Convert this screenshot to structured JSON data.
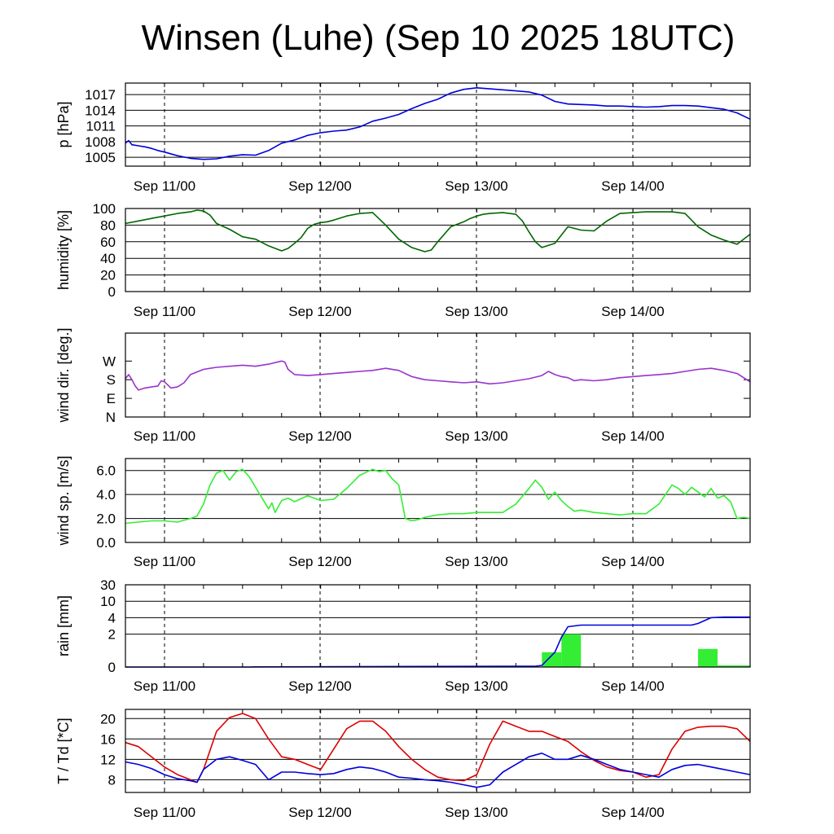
{
  "title": "Winsen (Luhe) (Sep 10 2025 18UTC)",
  "day_labels": [
    "Sep 11/00",
    "Sep 12/00",
    "Sep 13/00",
    "Sep 14/00"
  ],
  "colors": {
    "pressure": "#0000dd",
    "humidity": "#006600",
    "wind_dir": "#9933cc",
    "wind_speed": "#33ee33",
    "rain_bar": "#33ee33",
    "rain_cum": "#0000dd",
    "temperature": "#dd0000",
    "dewpoint": "#0000dd",
    "grid": "#000000"
  },
  "chart_data": [
    {
      "type": "line",
      "ylabel": "p [hPa]",
      "x_unit": "hours since Sep 10 18UTC",
      "xlim": [
        0,
        96
      ],
      "ylim": [
        1003.3,
        1019.2
      ],
      "yticks": [
        1005,
        1008,
        1011,
        1014,
        1017
      ],
      "ytick_labels": [
        "1005",
        "1008",
        "1011",
        "1014",
        "1017"
      ],
      "grid": true,
      "series": [
        {
          "color_key": "pressure",
          "x": [
            0,
            0.5,
            1,
            2,
            3,
            4,
            5,
            6,
            8,
            10,
            12,
            14,
            16,
            18,
            20,
            22,
            24,
            26,
            28,
            30,
            32,
            34,
            36,
            38,
            40,
            42,
            44,
            46,
            48,
            50,
            52,
            54,
            56,
            58,
            60,
            62,
            64,
            66,
            68,
            70,
            72,
            74,
            76,
            78,
            80,
            82,
            84,
            86,
            88,
            90,
            92,
            94,
            96
          ],
          "y": [
            1007.7,
            1008.2,
            1007.4,
            1007.2,
            1007.0,
            1006.7,
            1006.3,
            1006.0,
            1005.3,
            1004.8,
            1004.6,
            1004.7,
            1005.2,
            1005.5,
            1005.4,
            1006.3,
            1007.7,
            1008.3,
            1009.2,
            1009.7,
            1010.0,
            1010.2,
            1010.8,
            1011.9,
            1012.5,
            1013.2,
            1014.3,
            1015.3,
            1016.1,
            1017.3,
            1018.0,
            1018.3,
            1018.1,
            1017.9,
            1017.7,
            1017.5,
            1016.9,
            1015.7,
            1015.2,
            1015.1,
            1015.0,
            1014.8,
            1014.8,
            1014.7,
            1014.6,
            1014.7,
            1014.9,
            1014.9,
            1014.8,
            1014.5,
            1014.2,
            1013.5,
            1012.3
          ]
        }
      ]
    },
    {
      "type": "line",
      "ylabel": "humidity [%]",
      "x_unit": "hours since Sep 10 18UTC",
      "xlim": [
        0,
        96
      ],
      "ylim": [
        0,
        100
      ],
      "yticks": [
        0,
        20,
        40,
        60,
        80,
        100
      ],
      "ytick_labels": [
        "0",
        "20",
        "40",
        "60",
        "80",
        "100"
      ],
      "grid": true,
      "series": [
        {
          "color_key": "humidity",
          "x": [
            0,
            2,
            4,
            6,
            8,
            10,
            11,
            12,
            13,
            14,
            16,
            18,
            20,
            22,
            24,
            25,
            26,
            27,
            28,
            29,
            30,
            31,
            32,
            34,
            36,
            38,
            40,
            42,
            44,
            46,
            47,
            48,
            50,
            52,
            53,
            54,
            55,
            56,
            58,
            60,
            61,
            62,
            63,
            64,
            66,
            67,
            68,
            70,
            72,
            74,
            76,
            78,
            80,
            82,
            84,
            86,
            88,
            90,
            92,
            94,
            96
          ],
          "y": [
            82,
            85,
            88,
            91,
            94,
            96,
            98,
            97,
            92,
            82,
            75,
            66,
            63,
            55,
            49,
            52,
            58,
            65,
            76,
            81,
            83,
            84,
            86,
            91,
            94,
            95,
            80,
            63,
            53,
            48,
            50,
            60,
            78,
            84,
            88,
            91,
            93,
            94,
            95,
            93,
            85,
            72,
            60,
            53,
            58,
            68,
            78,
            74,
            73,
            85,
            94,
            95,
            96,
            96,
            96,
            94,
            78,
            68,
            62,
            57,
            69
          ]
        }
      ]
    },
    {
      "type": "line",
      "ylabel": "wind dir. [deg.]",
      "x_unit": "hours since Sep 10 18UTC",
      "xlim": [
        0,
        96
      ],
      "ylim": [
        0,
        405
      ],
      "yticks": [
        0,
        90,
        180,
        270
      ],
      "ytick_labels": [
        "N",
        "E",
        "S",
        "W"
      ],
      "grid": false,
      "series": [
        {
          "color_key": "wind_dir",
          "x": [
            0,
            0.5,
            1,
            1.5,
            2,
            3,
            4,
            5,
            5.5,
            6,
            7,
            8,
            9,
            10,
            12,
            14,
            16,
            18,
            20,
            22,
            24,
            24.5,
            25,
            26,
            28,
            30,
            32,
            34,
            36,
            38,
            40,
            42,
            44,
            46,
            48,
            50,
            52,
            54,
            56,
            58,
            60,
            62,
            64,
            65,
            66,
            67,
            68,
            69,
            70,
            72,
            74,
            76,
            78,
            80,
            82,
            84,
            86,
            88,
            90,
            92,
            94,
            95,
            96
          ],
          "y": [
            185,
            205,
            180,
            150,
            130,
            140,
            145,
            150,
            175,
            170,
            140,
            145,
            165,
            205,
            230,
            240,
            245,
            250,
            245,
            255,
            270,
            265,
            230,
            205,
            200,
            205,
            210,
            215,
            220,
            225,
            235,
            225,
            195,
            180,
            175,
            170,
            165,
            170,
            160,
            165,
            175,
            185,
            200,
            220,
            205,
            195,
            190,
            175,
            180,
            175,
            180,
            190,
            195,
            200,
            205,
            210,
            220,
            230,
            235,
            225,
            210,
            190,
            170
          ]
        }
      ]
    },
    {
      "type": "line",
      "ylabel": "wind sp. [m/s]",
      "x_unit": "hours since Sep 10 18UTC",
      "xlim": [
        0,
        96
      ],
      "ylim": [
        0,
        7
      ],
      "yticks": [
        0,
        2,
        4,
        6
      ],
      "ytick_labels": [
        "0.0",
        "2.0",
        "4.0",
        "6.0"
      ],
      "grid": true,
      "series": [
        {
          "color_key": "wind_speed",
          "x": [
            0,
            2,
            4,
            6,
            8,
            10,
            11,
            12,
            13,
            14,
            15,
            16,
            17,
            18,
            19,
            20,
            22,
            22.5,
            23,
            24,
            25,
            26,
            28,
            29,
            30,
            32,
            34,
            36,
            38,
            39,
            40,
            41,
            42,
            43,
            44,
            45,
            46,
            47,
            48,
            50,
            52,
            54,
            56,
            58,
            60,
            62,
            63,
            64,
            65,
            66,
            67,
            68,
            69,
            70,
            72,
            74,
            76,
            78,
            80,
            82,
            84,
            85,
            86,
            87,
            88,
            89,
            90,
            91,
            92,
            93,
            94,
            95,
            96
          ],
          "y": [
            1.6,
            1.7,
            1.8,
            1.8,
            1.7,
            2.0,
            2.2,
            3.2,
            4.8,
            5.8,
            6.0,
            5.2,
            5.9,
            6.1,
            5.5,
            4.6,
            2.8,
            3.3,
            2.5,
            3.5,
            3.7,
            3.4,
            3.9,
            3.7,
            3.5,
            3.6,
            4.5,
            5.6,
            6.1,
            5.9,
            6.0,
            5.3,
            4.8,
            2.0,
            1.8,
            1.9,
            2.1,
            2.2,
            2.3,
            2.4,
            2.4,
            2.5,
            2.5,
            2.5,
            3.2,
            4.5,
            5.2,
            4.6,
            3.6,
            4.2,
            3.5,
            3.0,
            2.6,
            2.7,
            2.5,
            2.4,
            2.3,
            2.4,
            2.4,
            3.2,
            4.8,
            4.5,
            4.0,
            4.6,
            4.2,
            3.8,
            4.5,
            3.7,
            3.9,
            3.4,
            2.0,
            2.1,
            2.0
          ]
        }
      ]
    },
    {
      "type": "bar+line",
      "ylabel": "rain [mm]",
      "x_unit": "hours since Sep 10 18UTC",
      "xlim": [
        0,
        96
      ],
      "scale": "symmetric-log",
      "yticks": [
        0,
        2,
        4,
        10,
        30
      ],
      "ytick_labels": [
        "0",
        "2",
        "4",
        "10",
        "30"
      ],
      "grid": true,
      "bars": [
        {
          "x_start": 64,
          "x_end": 67,
          "value": 0.9
        },
        {
          "x_start": 67,
          "x_end": 70,
          "value": 2.0
        },
        {
          "x_start": 88,
          "x_end": 91,
          "value": 1.1
        },
        {
          "x_start": 91,
          "x_end": 96,
          "value": 0.1
        }
      ],
      "series": [
        {
          "color_key": "rain_cum",
          "x": [
            0,
            19,
            20,
            63,
            64,
            66,
            67,
            68,
            70,
            72,
            84,
            87,
            88,
            90,
            92,
            96
          ],
          "y": [
            0,
            0,
            0.01,
            0.05,
            0.1,
            0.9,
            1.8,
            2.9,
            3.1,
            3.1,
            3.1,
            3.1,
            3.3,
            4.0,
            4.2,
            4.2
          ]
        }
      ]
    },
    {
      "type": "line",
      "ylabel": "T / Td [*C]",
      "x_unit": "hours since Sep 10 18UTC",
      "xlim": [
        0,
        96
      ],
      "ylim": [
        5.5,
        21.8
      ],
      "yticks": [
        8,
        12,
        16,
        20
      ],
      "ytick_labels": [
        "8",
        "12",
        "16",
        "20"
      ],
      "grid": true,
      "series": [
        {
          "color_key": "temperature",
          "x": [
            0,
            2,
            4,
            6,
            8,
            10,
            11,
            12,
            14,
            16,
            18,
            20,
            22,
            24,
            26,
            28,
            30,
            32,
            34,
            36,
            38,
            40,
            42,
            44,
            46,
            48,
            50,
            52,
            54,
            56,
            58,
            60,
            62,
            64,
            66,
            68,
            70,
            72,
            74,
            76,
            78,
            80,
            82,
            84,
            86,
            88,
            90,
            92,
            94,
            96
          ],
          "y": [
            15.3,
            14.5,
            12.5,
            10.5,
            9.0,
            8.0,
            7.5,
            10.0,
            17.5,
            20.2,
            21.0,
            20.0,
            16.0,
            12.5,
            12.0,
            11.0,
            10.0,
            14.0,
            18.0,
            19.5,
            19.5,
            17.5,
            14.5,
            12.0,
            10.0,
            8.5,
            8.0,
            7.8,
            9.0,
            15.0,
            19.5,
            18.5,
            17.5,
            17.5,
            16.5,
            15.5,
            13.5,
            11.8,
            10.5,
            9.8,
            9.5,
            8.5,
            9.0,
            14.0,
            17.5,
            18.3,
            18.5,
            18.5,
            18.0,
            15.5
          ]
        },
        {
          "color_key": "dewpoint",
          "x": [
            0,
            2,
            4,
            6,
            8,
            10,
            11,
            12,
            14,
            16,
            18,
            20,
            22,
            24,
            26,
            28,
            30,
            32,
            34,
            36,
            38,
            40,
            42,
            44,
            46,
            48,
            50,
            52,
            54,
            56,
            58,
            60,
            62,
            64,
            66,
            68,
            70,
            72,
            74,
            76,
            78,
            80,
            82,
            84,
            86,
            88,
            90,
            92,
            94,
            96
          ],
          "y": [
            11.5,
            11.0,
            10.2,
            9.0,
            8.2,
            7.8,
            7.5,
            10.0,
            12.0,
            12.5,
            11.8,
            11.0,
            8.0,
            9.5,
            9.5,
            9.2,
            9.0,
            9.2,
            10.0,
            10.5,
            10.2,
            9.5,
            8.5,
            8.3,
            8.0,
            7.8,
            7.5,
            7.0,
            6.5,
            7.0,
            9.5,
            11.0,
            12.5,
            13.2,
            12.0,
            12.0,
            12.8,
            12.0,
            11.0,
            10.0,
            9.5,
            9.0,
            8.5,
            10.0,
            10.8,
            11.0,
            10.5,
            10.0,
            9.5,
            9.0
          ]
        }
      ]
    }
  ]
}
